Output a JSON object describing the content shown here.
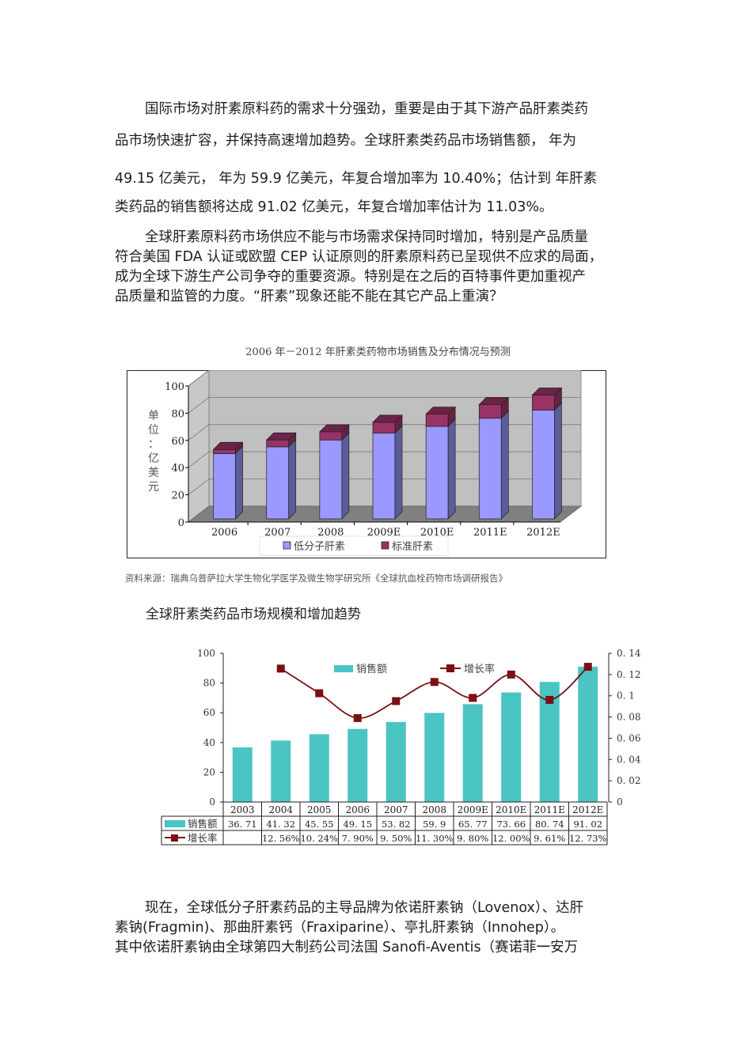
{
  "paragraphs": [
    {
      "lines": [
        "国际市场对肝素原料药的需求十分强劲，重要是由于其下游产品肝素类药",
        "品市场快速扩容，并保持高速增加趋势。全球肝素类药品市场销售额，  年为",
        "49.15 亿美元，  年为 59.9 亿美元，年复合增加率为 10.40%；估计到  年肝素",
        "类药品的销售额将达成 91.02 亿美元，年复合增加率估计为 11.03%。"
      ]
    },
    {
      "lines": [
        "全球肝素原料药市场供应不能与市场需求保持同时增加，特别是产品质量",
        "符合美国 FDA 认证或欧盟 CEP 认证原则的肝素原料药已呈现供不应求的局面，",
        "成为全球下游生产公司争夺的重要资源。特别是在之后的百特事件更加重视产",
        "品质量和监管的力度。“肝素”现象还能不能在其它产品上重演？"
      ]
    },
    {
      "lines": [
        "现在，全球低分子肝素药品的主导品牌为依诺肝素钠（Lovenox）、达肝",
        "素钠(Fragmin)、那曲肝素钙（Fraxiparine）、亭扎肝素钠（Innohep）。",
        "其中依诺肝素钠由全球第四大制药公司法国 Sanofi-Aventis（赛诺菲一安万"
      ]
    }
  ],
  "figure1": {
    "source_note": "资料来源：瑞典乌普萨拉大学生物化学医学及微生物学研究所《全球抗血栓药物市场调研报告》"
  },
  "figure2": {
    "heading": "全球肝素类药品市场规模和增加趋势"
  },
  "chart_data": [
    {
      "type": "bar",
      "stacked": true,
      "three_d": true,
      "title": "2006 年－2012 年肝素类药物市场销售及分布情况与预测",
      "ylabel": "单位：亿美元",
      "ylabel_chars": [
        "单",
        "位",
        "：",
        "亿",
        "美",
        "元"
      ],
      "xlabel": "",
      "ylim": [
        0,
        100
      ],
      "yticks": [
        "0",
        "20",
        "40",
        "60",
        "80",
        "100"
      ],
      "categories": [
        "2006",
        "2007",
        "2008",
        "2009E",
        "2010E",
        "2011E",
        "2012E"
      ],
      "series": [
        {
          "name": "低分子肝素",
          "color": "#9999ff",
          "values": [
            48,
            53,
            58,
            63,
            68,
            74,
            80
          ]
        },
        {
          "name": "标准肝素",
          "color": "#993366",
          "values": [
            3,
            5,
            6,
            8,
            9,
            10,
            11
          ]
        }
      ],
      "grid": true,
      "legend_position": "bottom"
    },
    {
      "type": "bar+line",
      "title": "全球肝素类药品市场规模和增加趋势",
      "categories": [
        "2003",
        "2004",
        "2005",
        "2006",
        "2007",
        "2008",
        "2009E",
        "2010E",
        "2011E",
        "2012E"
      ],
      "series": [
        {
          "name": "销售额",
          "type": "bar",
          "axis": "left",
          "color": "#4bc4c4",
          "values": [
            36.71,
            41.32,
            45.55,
            49.15,
            53.82,
            59.9,
            65.77,
            73.66,
            80.74,
            91.02
          ]
        },
        {
          "name": "增长率",
          "type": "line",
          "axis": "right",
          "color": "#7a0f14",
          "values": [
            null,
            0.1256,
            0.1024,
            0.079,
            0.095,
            0.113,
            0.098,
            0.12,
            0.0961,
            0.1273
          ]
        }
      ],
      "ylim_left": [
        0,
        100
      ],
      "yticks_left": [
        "0",
        "20",
        "40",
        "60",
        "80",
        "100"
      ],
      "ylim_right": [
        0,
        0.14
      ],
      "yticks_right": [
        "0",
        "0.02",
        "0.04",
        "0.06",
        "0.08",
        "0.1",
        "0.12",
        "0.14"
      ],
      "grid": false,
      "legend_position": "top",
      "data_table": {
        "rows": [
          {
            "label": "销售额",
            "cells": [
              "36. 71",
              "41. 32",
              "45. 55",
              "49. 15",
              "53. 82",
              "59. 9",
              "65. 77",
              "73. 66",
              "80. 74",
              "91. 02"
            ]
          },
          {
            "label": "增长率",
            "cells": [
              "",
              "12. 56%",
              "10. 24%",
              "7. 90%",
              "9. 50%",
              "11. 30%",
              "9. 80%",
              "12. 00%",
              "9. 61%",
              "12. 73%"
            ]
          }
        ]
      }
    }
  ]
}
